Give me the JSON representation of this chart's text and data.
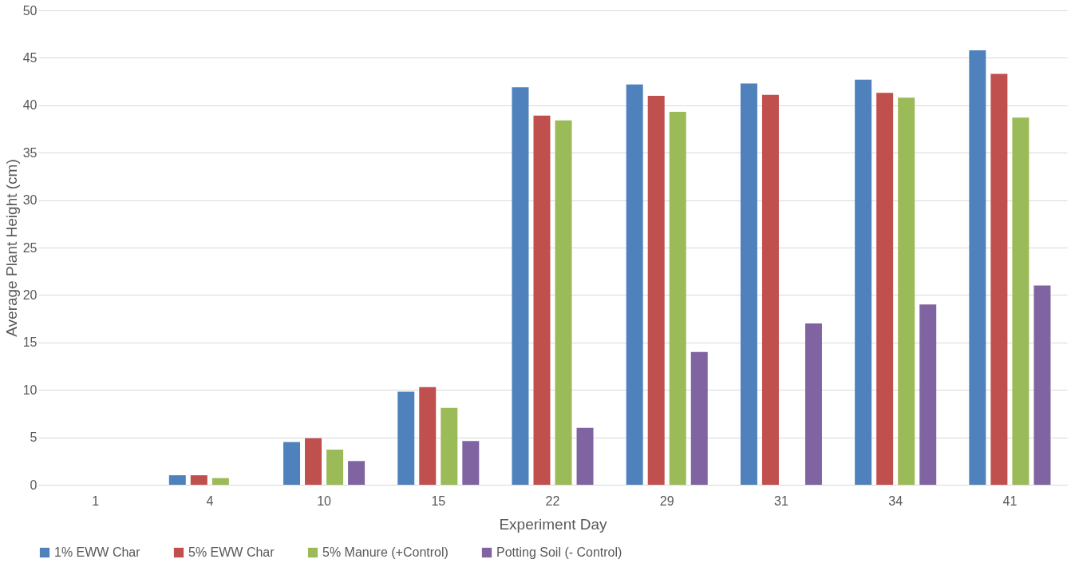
{
  "chart_data": {
    "type": "bar",
    "xlabel": "Experiment Day",
    "ylabel": "Average Plant Height (cm)",
    "categories": [
      "1",
      "4",
      "10",
      "15",
      "22",
      "29",
      "31",
      "34",
      "41"
    ],
    "series": [
      {
        "name": "1% EWW Char",
        "color": "#4f81bd",
        "values": [
          0,
          1.0,
          4.5,
          9.8,
          41.9,
          42.2,
          42.3,
          42.7,
          45.8
        ]
      },
      {
        "name": "5% EWW Char",
        "color": "#c0504d",
        "values": [
          0,
          1.0,
          4.9,
          10.3,
          38.9,
          41.0,
          41.1,
          41.3,
          43.3
        ]
      },
      {
        "name": "5% Manure (+Control)",
        "color": "#9bbb59",
        "values": [
          0,
          0.7,
          3.7,
          8.1,
          38.4,
          39.3,
          null,
          40.8,
          38.7
        ]
      },
      {
        "name": "Potting Soil (- Control)",
        "color": "#8064a2",
        "values": [
          0,
          0,
          2.5,
          4.6,
          6.0,
          14.0,
          17.0,
          19.0,
          21.0
        ]
      }
    ],
    "ylim": [
      0,
      50
    ],
    "yticks": [
      0,
      5,
      10,
      15,
      20,
      25,
      30,
      35,
      40,
      45,
      50
    ],
    "grid": "y",
    "legend": "bottom"
  }
}
